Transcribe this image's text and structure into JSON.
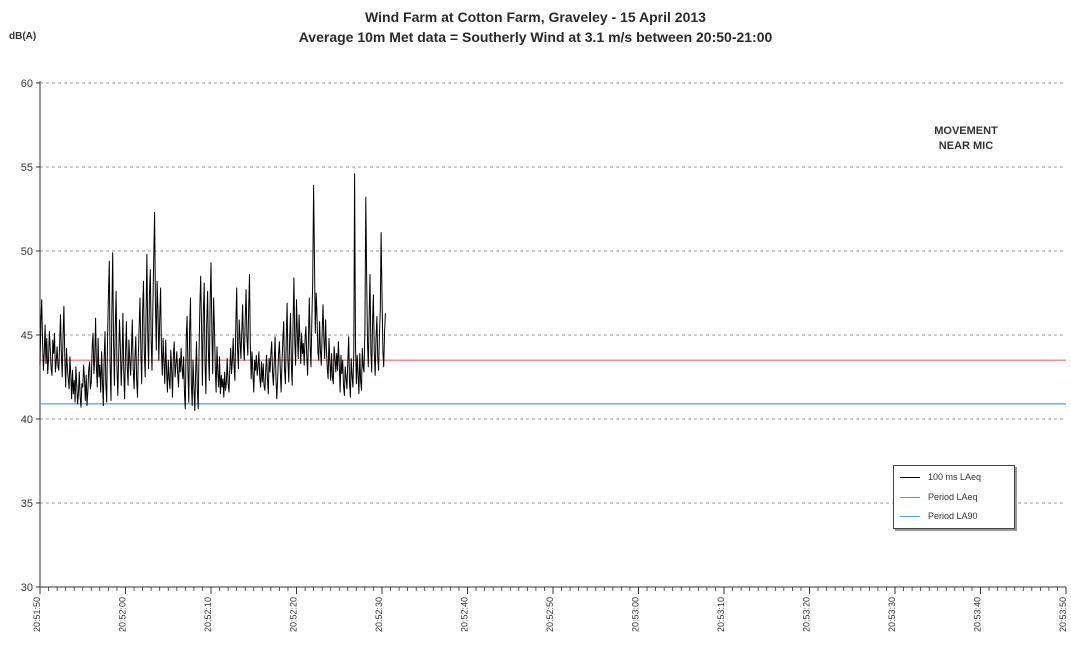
{
  "chart_data": {
    "type": "line",
    "title": "Wind Farm at Cotton Farm, Graveley - 15 April 2013",
    "subtitle": "Average 10m Met data = Southerly Wind at 3.1 m/s between 20:50-21:00",
    "ylabel": "dB(A)",
    "xlabel": "",
    "ylim": [
      30,
      60
    ],
    "yticks": [
      30,
      35,
      40,
      45,
      50,
      55,
      60
    ],
    "xlim": [
      "20:51:50",
      "20:53:50"
    ],
    "xticks": [
      "20:51:50",
      "20:52:00",
      "20:52:10",
      "20:52:20",
      "20:52:30",
      "20:52:40",
      "20:52:50",
      "20:53:00",
      "20:53:10",
      "20:53:20",
      "20:53:30",
      "20:53:40",
      "20:53:50"
    ],
    "grid": "horizontal dashed",
    "legend_position": "bottom-right",
    "annotations": [
      {
        "text": "MOVEMENT\nNEAR MIC",
        "line1": "MOVEMENT",
        "line2": "NEAR MIC",
        "x": "20:53:39",
        "y": 54.6
      }
    ],
    "series": [
      {
        "name": "100 ms LAeq",
        "color": "#000000",
        "x_start": "20:51:50",
        "x_step_seconds": 0.1,
        "values": [
          43.2,
          45.8,
          47.1,
          44.5,
          42.9,
          44.0,
          45.6,
          43.3,
          44.8,
          42.7,
          43.5,
          45.2,
          44.1,
          43.0,
          42.6,
          44.7,
          43.9,
          45.1,
          42.8,
          43.4,
          44.3,
          43.1,
          42.9,
          44.6,
          46.2,
          43.8,
          42.5,
          45.0,
          46.7,
          43.6,
          41.9,
          44.2,
          43.0,
          42.4,
          41.8,
          43.7,
          42.6,
          41.2,
          42.9,
          41.5,
          42.3,
          41.0,
          43.1,
          42.0,
          40.9,
          41.6,
          42.8,
          41.3,
          40.7,
          42.1,
          41.9,
          43.2,
          42.4,
          41.1,
          42.6,
          40.8,
          41.7,
          42.9,
          43.4,
          41.8,
          42.2,
          44.3,
          45.1,
          42.7,
          43.6,
          46.0,
          43.1,
          41.9,
          44.8,
          42.5,
          43.2,
          41.6,
          44.0,
          42.3,
          40.8,
          43.5,
          45.2,
          42.1,
          41.0,
          44.6,
          47.3,
          49.4,
          43.2,
          41.1,
          46.1,
          49.9,
          44.8,
          42.0,
          45.3,
          47.6,
          42.9,
          41.4,
          43.8,
          45.9,
          44.2,
          42.0,
          43.5,
          46.3,
          42.7,
          41.2,
          43.9,
          45.8,
          43.1,
          42.0,
          44.7,
          43.5,
          42.6,
          44.1,
          45.9,
          43.0,
          41.8,
          43.6,
          44.9,
          42.4,
          41.3,
          43.7,
          45.6,
          47.2,
          43.8,
          42.1,
          46.4,
          48.2,
          44.0,
          42.5,
          46.1,
          49.8,
          45.2,
          43.0,
          47.3,
          48.9,
          44.6,
          42.9,
          46.8,
          49.5,
          52.3,
          47.0,
          44.1,
          48.2,
          46.4,
          43.5,
          45.9,
          47.8,
          44.2,
          42.6,
          44.8,
          43.3,
          42.1,
          44.7,
          43.0,
          41.6,
          43.5,
          42.4,
          41.8,
          44.1,
          42.9,
          41.3,
          43.8,
          44.6,
          42.5,
          43.2,
          44.0,
          42.7,
          41.9,
          43.6,
          42.8,
          44.2,
          43.1,
          42.4,
          43.7,
          41.5,
          40.6,
          44.8,
          46.1,
          42.9,
          41.0,
          45.3,
          47.2,
          42.2,
          40.8,
          43.5,
          41.9,
          40.5,
          42.7,
          44.6,
          41.8,
          40.6,
          43.9,
          46.8,
          48.5,
          45.3,
          42.0,
          46.2,
          48.1,
          43.4,
          41.5,
          45.7,
          47.6,
          44.0,
          42.3,
          46.9,
          49.3,
          45.1,
          42.7,
          47.2,
          45.5,
          43.0,
          41.6,
          44.3,
          42.8,
          41.9,
          43.7,
          41.5,
          42.6,
          41.9,
          42.4,
          41.3,
          42.8,
          41.7,
          42.2,
          43.6,
          42.1,
          41.6,
          43.0,
          44.2,
          42.7,
          43.5,
          44.8,
          43.1,
          42.3,
          45.6,
          47.8,
          44.2,
          43.0,
          45.9,
          44.7,
          43.6,
          45.2,
          46.8,
          44.3,
          43.5,
          45.9,
          47.7,
          44.9,
          43.8,
          46.4,
          48.6,
          44.5,
          42.4,
          44.0,
          42.7,
          41.6,
          43.5,
          42.9,
          43.8,
          42.6,
          43.1,
          44.0,
          42.5,
          41.9,
          43.4,
          42.2,
          43.3,
          42.0,
          41.7,
          42.9,
          43.8,
          42.4,
          41.5,
          43.6,
          42.8,
          43.9,
          44.6,
          42.7,
          42.0,
          43.5,
          44.9,
          42.3,
          41.2,
          42.5,
          43.8,
          44.6,
          42.9,
          41.6,
          43.4,
          44.7,
          45.8,
          43.0,
          42.1,
          44.6,
          46.9,
          43.5,
          42.2,
          44.9,
          46.3,
          43.1,
          42.0,
          45.8,
          48.4,
          44.6,
          43.2,
          47.1,
          45.0,
          43.6,
          46.2,
          44.8,
          43.3,
          45.1,
          43.9,
          44.5,
          43.2,
          44.8,
          45.5,
          43.7,
          42.6,
          44.9,
          47.2,
          44.3,
          43.1,
          46.0,
          48.1,
          53.9,
          49.3,
          45.1,
          47.5,
          46.2,
          44.0,
          43.5,
          45.8,
          44.1,
          43.2,
          45.2,
          46.8,
          44.7,
          43.6,
          45.9,
          44.2,
          43.0,
          42.4,
          44.8,
          43.5,
          42.3,
          43.9,
          42.5,
          42.1,
          44.3,
          43.6,
          42.8,
          43.9,
          42.9,
          44.6,
          43.2,
          41.6,
          43.8,
          42.7,
          43.5,
          42.0,
          41.4,
          43.1,
          42.4,
          41.8,
          43.4,
          44.9,
          42.2,
          41.3,
          43.6,
          42.5,
          41.9,
          44.0,
          54.6,
          44.3,
          42.1,
          43.8,
          42.6,
          41.5,
          43.9,
          42.3,
          41.7,
          44.2,
          43.1,
          42.8,
          45.3,
          53.2,
          48.7,
          44.6,
          43.1,
          46.2,
          48.6,
          44.0,
          42.8,
          45.9,
          47.4,
          43.9,
          42.6,
          44.8,
          46.1,
          43.7,
          42.9,
          44.9,
          46.5,
          51.1,
          47.4,
          44.0,
          43.1,
          45.2,
          46.3
        ]
      },
      {
        "name": "Period LAeq",
        "color": "#e07070",
        "values": [
          43.5,
          43.5
        ]
      },
      {
        "name": "Period LA90",
        "color": "#5b9bd5",
        "values": [
          40.9,
          40.9
        ]
      }
    ]
  }
}
